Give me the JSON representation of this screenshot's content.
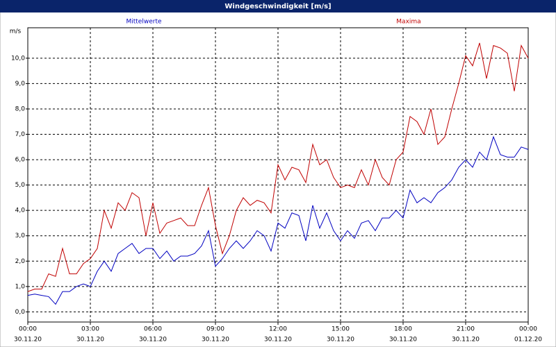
{
  "chart_data": {
    "type": "line",
    "title": "Windgeschwindigkeit [m/s]",
    "y_unit": "m/s",
    "x": [
      0,
      20,
      40,
      60,
      80,
      100,
      120,
      140,
      160,
      180,
      200,
      220,
      240,
      260,
      280,
      300,
      320,
      340,
      360,
      380,
      400,
      420,
      440,
      460,
      480,
      500,
      520,
      540,
      560,
      580,
      600,
      620,
      640,
      660,
      680,
      700,
      720,
      740,
      760,
      780,
      800,
      820,
      840,
      860,
      880,
      900,
      920,
      940,
      960,
      980,
      1000,
      1020,
      1040,
      1060,
      1080,
      1100,
      1120,
      1140,
      1160,
      1180,
      1200,
      1220,
      1240,
      1260,
      1280,
      1300,
      1320,
      1340,
      1360,
      1380,
      1400,
      1420,
      1440
    ],
    "series": [
      {
        "name": "Mittelwerte",
        "color": "#0000c0",
        "values": [
          0.65,
          0.7,
          0.65,
          0.6,
          0.3,
          0.8,
          0.8,
          1.0,
          1.1,
          1.0,
          1.6,
          2.0,
          1.6,
          2.3,
          2.5,
          2.7,
          2.3,
          2.5,
          2.5,
          2.1,
          2.4,
          2.0,
          2.2,
          2.2,
          2.3,
          2.6,
          3.2,
          1.8,
          2.1,
          2.5,
          2.8,
          2.5,
          2.8,
          3.2,
          3.0,
          2.4,
          3.5,
          3.3,
          3.9,
          3.8,
          2.8,
          4.2,
          3.3,
          3.9,
          3.2,
          2.8,
          3.2,
          2.9,
          3.5,
          3.6,
          3.2,
          3.7,
          3.7,
          4.0,
          3.7,
          4.8,
          4.3,
          4.5,
          4.3,
          4.7,
          4.9,
          5.2,
          5.7,
          6.0,
          5.7,
          6.3,
          6.0,
          6.9,
          6.2,
          6.1,
          6.1,
          6.5,
          6.4
        ]
      },
      {
        "name": "Maxima",
        "color": "#c00000",
        "values": [
          0.8,
          0.9,
          0.9,
          1.5,
          1.4,
          2.5,
          1.5,
          1.5,
          1.9,
          2.1,
          2.5,
          4.0,
          3.3,
          4.3,
          4.0,
          4.7,
          4.5,
          3.0,
          4.3,
          3.1,
          3.5,
          3.6,
          3.7,
          3.4,
          3.4,
          4.2,
          4.9,
          3.4,
          2.3,
          3.0,
          4.0,
          4.5,
          4.2,
          4.4,
          4.3,
          3.9,
          5.8,
          5.2,
          5.7,
          5.6,
          5.1,
          6.6,
          5.8,
          6.0,
          5.3,
          4.9,
          5.0,
          4.9,
          5.6,
          5.0,
          6.0,
          5.3,
          5.0,
          6.0,
          6.3,
          7.7,
          7.5,
          7.0,
          8.0,
          6.6,
          6.9,
          8.0,
          9.0,
          10.1,
          9.7,
          10.6,
          9.2,
          10.5,
          10.4,
          10.2,
          8.7,
          10.5,
          10.0
        ]
      }
    ],
    "xlim": [
      0,
      1440
    ],
    "xticks": [
      {
        "value": 0,
        "label": "00:00"
      },
      {
        "value": 180,
        "label": "03:00"
      },
      {
        "value": 360,
        "label": "06:00"
      },
      {
        "value": 540,
        "label": "09:00"
      },
      {
        "value": 720,
        "label": "12:00"
      },
      {
        "value": 900,
        "label": "15:00"
      },
      {
        "value": 1080,
        "label": "18:00"
      },
      {
        "value": 1260,
        "label": "21:00"
      },
      {
        "value": 1440,
        "label": "00:00"
      }
    ],
    "xtick_dates": [
      "30.11.20",
      "30.11.20",
      "30.11.20",
      "30.11.20",
      "30.11.20",
      "30.11.20",
      "30.11.20",
      "30.11.20",
      "01.12.20"
    ],
    "ylim": [
      -0.4,
      11.2
    ],
    "yticks": [
      {
        "value": 0,
        "label": "0,0"
      },
      {
        "value": 1,
        "label": "1,0"
      },
      {
        "value": 2,
        "label": "2,0"
      },
      {
        "value": 3,
        "label": "3,0"
      },
      {
        "value": 4,
        "label": "4,0"
      },
      {
        "value": 5,
        "label": "5,0"
      },
      {
        "value": 6,
        "label": "6,0"
      },
      {
        "value": 7,
        "label": "7,0"
      },
      {
        "value": 8,
        "label": "8,0"
      },
      {
        "value": 9,
        "label": "9,0"
      },
      {
        "value": 10,
        "label": "10,0"
      }
    ],
    "grid": true
  }
}
